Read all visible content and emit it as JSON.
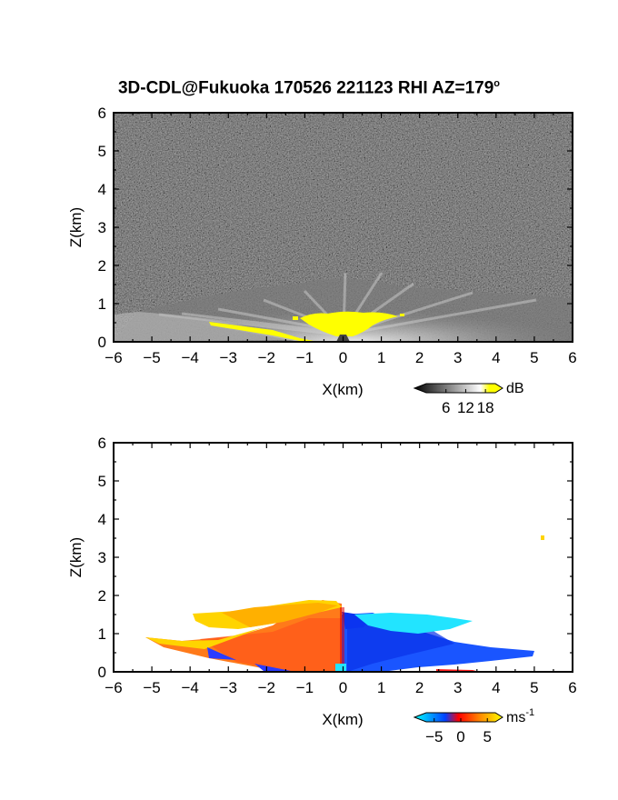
{
  "title": {
    "main": "3D-CDL@Fukuoka 170526 221123 RHI AZ=179",
    "degree_sup": "o"
  },
  "chart_data": [
    {
      "type": "heatmap",
      "name": "power",
      "xlabel": "X(km)",
      "ylabel": "Z(km)",
      "xlim": [
        -6,
        6
      ],
      "ylim": [
        0,
        6
      ],
      "xticks": [
        -6,
        -5,
        -4,
        -3,
        -2,
        -1,
        0,
        1,
        2,
        3,
        4,
        5,
        6
      ],
      "yticks": [
        0,
        1,
        2,
        3,
        4,
        5,
        6
      ],
      "xtick_labels": [
        "-6",
        "-5",
        "-4",
        "-3",
        "-2",
        "-1",
        "0",
        "1",
        "2",
        "3",
        "4",
        "5",
        "6"
      ],
      "ytick_labels": [
        "0",
        "1",
        "2",
        "3",
        "4",
        "5",
        "6"
      ],
      "background_noise_color": "#2e2e2e",
      "colorbar": {
        "unit": "dB",
        "ticks": [
          6,
          12,
          18
        ],
        "tick_labels": [
          "6",
          "12",
          "18"
        ],
        "colors": [
          "#000000",
          "#ffffff",
          "#ffff00"
        ]
      },
      "features": {
        "echo_region": "low-level bright echo below ~1.5 km from about -5.5 to 6 km",
        "saturated_region": "yellow (>18 dB) near surface from about -3.5 to 1.5 km"
      }
    },
    {
      "type": "heatmap",
      "name": "doppler_velocity",
      "xlabel": "X(km)",
      "ylabel": "Z(km)",
      "xlim": [
        -6,
        6
      ],
      "ylim": [
        0,
        6
      ],
      "xticks": [
        -6,
        -5,
        -4,
        -3,
        -2,
        -1,
        0,
        1,
        2,
        3,
        4,
        5,
        6
      ],
      "yticks": [
        0,
        1,
        2,
        3,
        4,
        5,
        6
      ],
      "xtick_labels": [
        "-6",
        "-5",
        "-4",
        "-3",
        "-2",
        "-1",
        "0",
        "1",
        "2",
        "3",
        "4",
        "5",
        "6"
      ],
      "ytick_labels": [
        "0",
        "1",
        "2",
        "3",
        "4",
        "5",
        "6"
      ],
      "colorbar": {
        "unit": "ms",
        "unit_exp": "-1",
        "ticks": [
          -5,
          0,
          5
        ],
        "tick_labels": [
          "-5",
          "0",
          "5"
        ],
        "colors": [
          "#00ffff",
          "#0040ff",
          "#ff0000",
          "#ff8000",
          "#ffff00"
        ]
      },
      "features": {
        "positive_velocity": "x from about -5.2 to 0 km, z 0 to 1.8 km (orange/yellow)",
        "negative_velocity": "x from 0 to about 5 km, z 0 to 1.5 km (blue, cyan aloft)",
        "isolated_echo": {
          "x": 5.3,
          "z": 3.5
        }
      }
    }
  ]
}
